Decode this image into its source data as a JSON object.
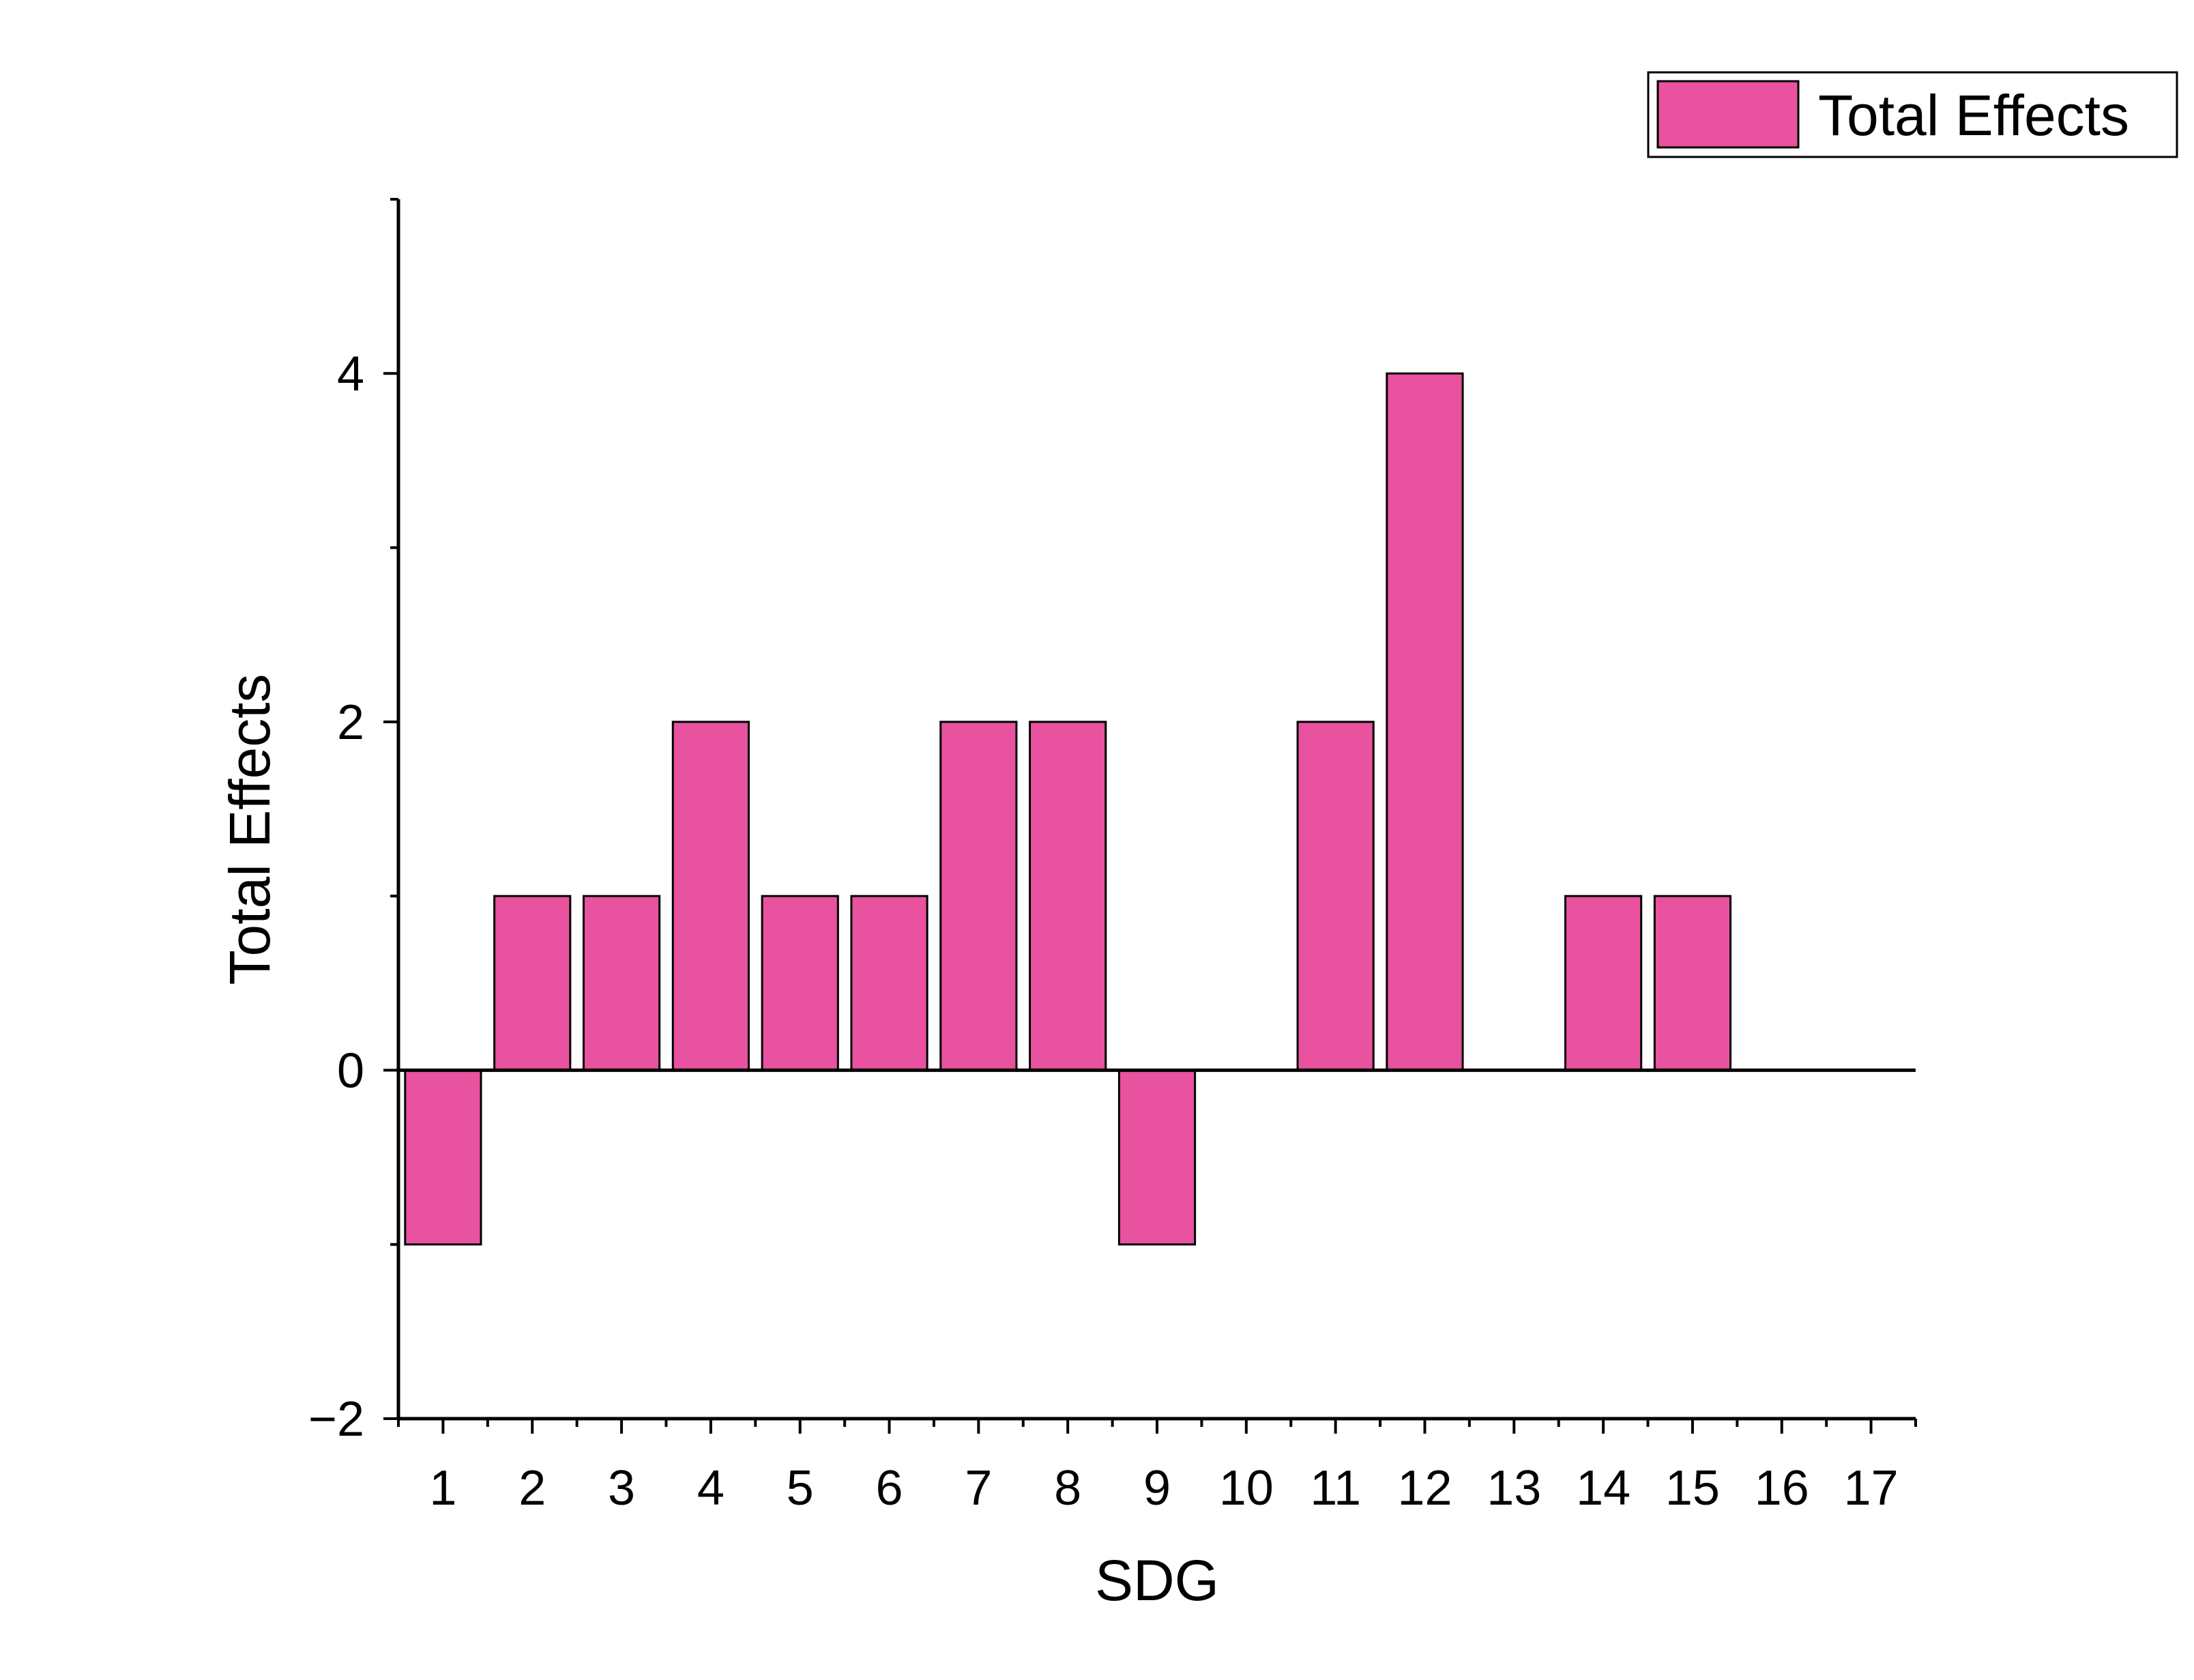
{
  "colors": {
    "bar_fill": "#E8529F",
    "bar_stroke": "#000000",
    "axis": "#000000",
    "background": "#FFFFFF"
  },
  "chart_data": {
    "type": "bar",
    "title": "",
    "xlabel": "SDG",
    "ylabel": "Total Effects",
    "categories": [
      "1",
      "2",
      "3",
      "4",
      "5",
      "6",
      "7",
      "8",
      "9",
      "10",
      "11",
      "12",
      "13",
      "14",
      "15",
      "16",
      "17"
    ],
    "series": [
      {
        "name": "Total Effects",
        "values": [
          -1,
          1,
          1,
          2,
          1,
          1,
          2,
          2,
          -1,
          0,
          2,
          4,
          0,
          1,
          1,
          0,
          0
        ]
      }
    ],
    "ylim": [
      -2,
      5
    ],
    "yticks": [
      -2,
      0,
      2,
      4
    ],
    "ytick_labels": [
      "−2",
      "0",
      "2",
      "4"
    ],
    "grid": false,
    "legend_position": "top-right"
  }
}
